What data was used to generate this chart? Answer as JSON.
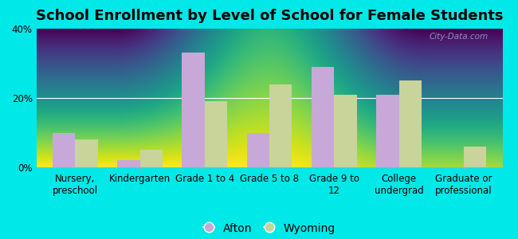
{
  "title": "School Enrollment by Level of School for Female Students",
  "categories": [
    "Nursery,\npreschool",
    "Kindergarten",
    "Grade 1 to 4",
    "Grade 5 to 8",
    "Grade 9 to\n12",
    "College\nundergrad",
    "Graduate or\nprofessional"
  ],
  "afton_values": [
    10,
    2,
    33,
    10,
    29,
    21,
    0
  ],
  "wyoming_values": [
    8,
    5,
    19,
    24,
    21,
    25,
    6
  ],
  "afton_color": "#c8a8d8",
  "wyoming_color": "#c8d49a",
  "background_color": "#00e8e8",
  "plot_bg_gradient_top": "#f5f5f0",
  "plot_bg_gradient_bottom": "#d0e8d0",
  "ylim": [
    0,
    40
  ],
  "yticks": [
    0,
    20,
    40
  ],
  "ytick_labels": [
    "0%",
    "20%",
    "40%"
  ],
  "legend_labels": [
    "Afton",
    "Wyoming"
  ],
  "watermark": "City-Data.com",
  "title_fontsize": 13,
  "tick_fontsize": 8.5,
  "legend_fontsize": 10
}
